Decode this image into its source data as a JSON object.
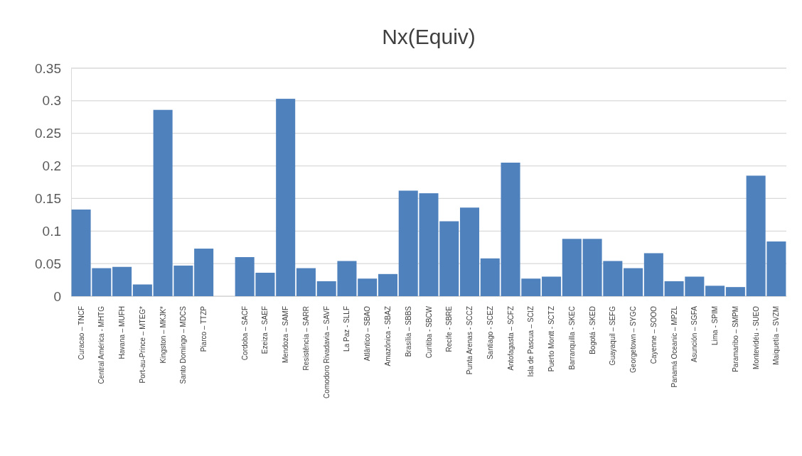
{
  "chart_data": {
    "type": "bar",
    "title": "Nx(Equiv)",
    "categories": [
      "Curacao – TNCF",
      "Central América - MHTG",
      "Havana – MUFH",
      "Port-au-Prince – MTEG*",
      "Kingston – MKJK*",
      "Santo Domingo – MDCS",
      "Piarco – TTZP",
      null,
      "Cordoba – SACF",
      "Ezeiza – SAEF",
      "Mendoza – SAMF",
      "Resistência – SARR",
      "Comodoro Rivadavia – SAVF",
      "La Paz - SLLF",
      "Atlântico – SBAO",
      "Amazônica - SBAZ",
      "Brasília – SBBS",
      "Curitiba - SBCW",
      "Recife - SBRE",
      "Punta Arenas - SCCZ",
      "Santiago - SCEZ",
      "Antofagasta – SCFZ",
      "Isla de Pascua – SCIZ",
      "Puerto Montt - SCTZ",
      "Barranquilla - SKEC",
      "Bogotá - SKED",
      "Guayaquil – SEFG",
      "Georgetown – SYGC",
      "Cayenne – SOOO",
      "Panamá Oceanic – MPZL",
      "Asunción – SGFA",
      "Lima - SPIM",
      "Paramaribo – SMPM",
      "Montevidéu - SUEO",
      "Maiquetía – SVZM"
    ],
    "values": [
      0.133,
      0.043,
      0.045,
      0.018,
      0.286,
      0.047,
      0.073,
      null,
      0.06,
      0.036,
      0.303,
      0.043,
      0.023,
      0.054,
      0.027,
      0.034,
      0.162,
      0.158,
      0.115,
      0.136,
      0.058,
      0.205,
      0.027,
      0.03,
      0.088,
      0.088,
      0.054,
      0.043,
      0.066,
      0.023,
      0.03,
      0.016,
      0.014,
      0.185,
      0.084
    ],
    "color": "#4f81bd",
    "ylim": [
      0,
      0.35
    ],
    "yticks": [
      {
        "value": 0,
        "label": "0"
      },
      {
        "value": 0.05,
        "label": "0.05"
      },
      {
        "value": 0.1,
        "label": "0.1"
      },
      {
        "value": 0.15,
        "label": "0.15"
      },
      {
        "value": 0.2,
        "label": "0.2"
      },
      {
        "value": 0.25,
        "label": "0.25"
      },
      {
        "value": 0.3,
        "label": "0.3"
      },
      {
        "value": 0.35,
        "label": "0.35"
      }
    ],
    "grid": "y"
  }
}
